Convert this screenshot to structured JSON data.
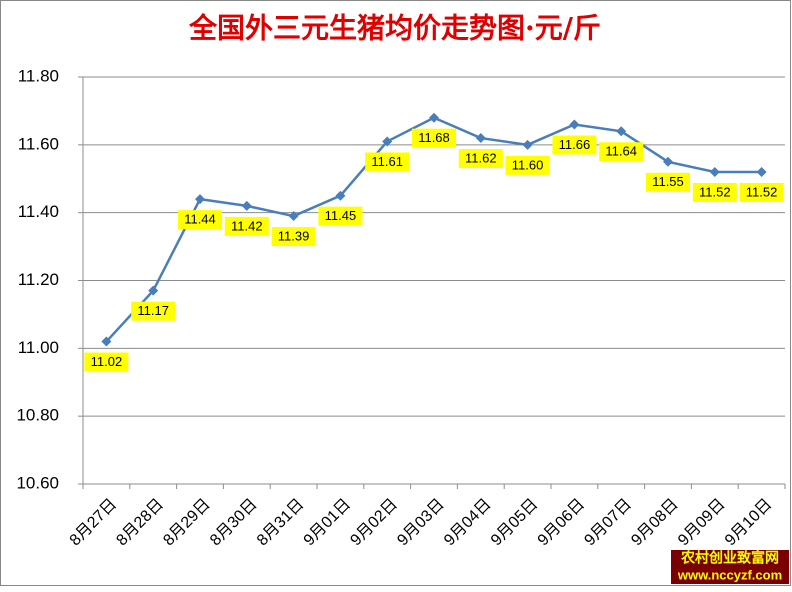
{
  "chart_data": {
    "type": "line",
    "title": "全国外三元生猪均价走势图·元/斤",
    "categories": [
      "8月27日",
      "8月28日",
      "8月29日",
      "8月30日",
      "8月31日",
      "9月01日",
      "9月02日",
      "9月03日",
      "9月04日",
      "9月05日",
      "9月06日",
      "9月07日",
      "9月08日",
      "9月09日",
      "9月10日"
    ],
    "values": [
      11.02,
      11.17,
      11.44,
      11.42,
      11.39,
      11.45,
      11.61,
      11.68,
      11.62,
      11.6,
      11.66,
      11.64,
      11.55,
      11.52,
      11.52
    ],
    "value_labels": [
      "11.02",
      "11.17",
      "11.44",
      "11.42",
      "11.39",
      "11.45",
      "11.61",
      "11.68",
      "11.62",
      "11.60",
      "11.66",
      "11.64",
      "11.55",
      "11.52",
      "11.52"
    ],
    "color": "#4a7ebb",
    "ylim": [
      10.6,
      11.8
    ],
    "yticks": [
      {
        "value": 10.6,
        "label": "10.60"
      },
      {
        "value": 10.8,
        "label": "10.80"
      },
      {
        "value": 11,
        "label": "11.00"
      },
      {
        "value": 11.2,
        "label": "11.20"
      },
      {
        "value": 11.4,
        "label": "11.40"
      },
      {
        "value": 11.6,
        "label": "11.60"
      },
      {
        "value": 11.8,
        "label": "11.80"
      }
    ],
    "grid": true
  },
  "watermark": {
    "name": "农村创业致富网",
    "url": "www.nccyzf.com"
  }
}
